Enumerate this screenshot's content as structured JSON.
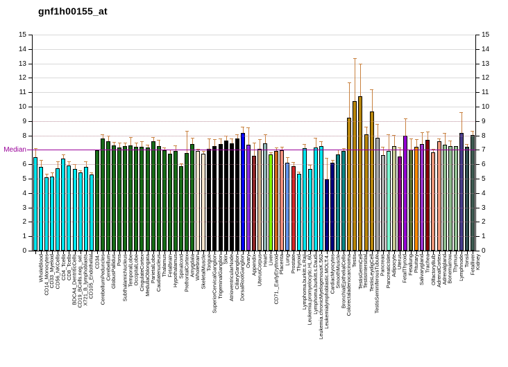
{
  "page_title": "gnf1h00155_at",
  "chart_data": {
    "type": "bar",
    "title": "gnf1h00155_at",
    "xlabel": "",
    "ylabel": "",
    "ylim": [
      0,
      15
    ],
    "y_ticks": [
      0,
      1,
      2,
      3,
      4,
      5,
      6,
      7,
      8,
      9,
      10,
      11,
      12,
      13,
      14,
      15
    ],
    "grid": true,
    "legend_position": "none",
    "median": {
      "label": "Median",
      "value": 7,
      "color": "#990099"
    },
    "error_bar_color": "#c8813f",
    "grid_color": "#d9d9d9",
    "axis_color": "#000000",
    "background_color": "#ffffff",
    "bars": [
      {
        "label": "WholeBlood",
        "value": 6.5,
        "err": 7.1,
        "color": "#00e6ee"
      },
      {
        "label": "CD14_Monocytes",
        "value": 5.8,
        "err": 6.3,
        "color": "#00e6ee"
      },
      {
        "label": "CD33_Myeloid",
        "value": 5.1,
        "err": 5.35,
        "color": "#00e6ee"
      },
      {
        "label": "CD56_NKCells",
        "value": 5.15,
        "err": 5.45,
        "color": "#00e6ee"
      },
      {
        "label": "CD4_Tcells",
        "value": 5.7,
        "err": 6.2,
        "color": "#00e6ee"
      },
      {
        "label": "CD8_Tcells",
        "value": 6.4,
        "err": 6.7,
        "color": "#00e6ee"
      },
      {
        "label": "BDCA4_DentriticCells",
        "value": 5.9,
        "err": 6.2,
        "color": "#00e6ee"
      },
      {
        "label": "CD19_BCells.neg._sel.",
        "value": 5.65,
        "err": 6.0,
        "color": "#00e6ee"
      },
      {
        "label": "X721_B_lymphoblasts",
        "value": 5.45,
        "err": 5.6,
        "color": "#00e6ee"
      },
      {
        "label": "CD105_Endothelial",
        "value": 5.8,
        "err": 6.2,
        "color": "#00e6ee"
      },
      {
        "label": "CD34.",
        "value": 5.3,
        "err": 5.45,
        "color": "#00e6ee"
      },
      {
        "label": "CerebellumPeduncles",
        "value": 6.95,
        "err": null,
        "color": "#176c17"
      },
      {
        "label": "Cerebellum",
        "value": 7.8,
        "err": 8.1,
        "color": "#176c17"
      },
      {
        "label": "GlobusPallidus",
        "value": 7.6,
        "err": 8.0,
        "color": "#176c17"
      },
      {
        "label": "Pons",
        "value": 7.3,
        "err": 7.55,
        "color": "#176c17"
      },
      {
        "label": "SubthalamicNucleus",
        "value": 7.15,
        "err": 7.5,
        "color": "#176c17"
      },
      {
        "label": "TemporalLobe",
        "value": 7.25,
        "err": 7.5,
        "color": "#176c17"
      },
      {
        "label": "OccipitalLobe",
        "value": 7.3,
        "err": 7.9,
        "color": "#176c17"
      },
      {
        "label": "CingulateCortex",
        "value": 7.2,
        "err": 7.5,
        "color": "#176c17"
      },
      {
        "label": "MedullaOblongata",
        "value": 7.2,
        "err": 7.6,
        "color": "#176c17"
      },
      {
        "label": "ParietalLobe",
        "value": 7.15,
        "err": 7.35,
        "color": "#176c17"
      },
      {
        "label": "Caudatenucleus",
        "value": 7.6,
        "err": 7.9,
        "color": "#176c17"
      },
      {
        "label": "Thalamus",
        "value": 7.25,
        "err": 7.7,
        "color": "#176c17"
      },
      {
        "label": "Fetalbrain",
        "value": 6.95,
        "err": 7.15,
        "color": "#176c17"
      },
      {
        "label": "Hypothalamus",
        "value": 6.75,
        "err": 7.0,
        "color": "#176c17"
      },
      {
        "label": "Spinalcord",
        "value": 6.9,
        "err": 7.3,
        "color": "#176c17"
      },
      {
        "label": "PrefrontalCortex",
        "value": 5.85,
        "err": 6.05,
        "color": "#176c17"
      },
      {
        "label": "Amygdala",
        "value": 6.8,
        "err": 8.3,
        "color": "#176c17"
      },
      {
        "label": "Wholebrain",
        "value": 7.4,
        "err": 7.85,
        "color": "#176c17"
      },
      {
        "label": "SkeletalMuscle",
        "value": 6.9,
        "err": 7.05,
        "color": "#fae8d0"
      },
      {
        "label": "Tongue",
        "value": 6.75,
        "err": 6.9,
        "color": "#fae8d0"
      },
      {
        "label": "SuperiorCervicalGanglion",
        "value": 7.05,
        "err": 7.8,
        "color": "#000000"
      },
      {
        "label": "TrigeminalGanglion",
        "value": 7.25,
        "err": 7.75,
        "color": "#000000"
      },
      {
        "label": "Skin",
        "value": 7.4,
        "err": 7.8,
        "color": "#000000"
      },
      {
        "label": "AtrioventricularNode",
        "value": 7.65,
        "err": 8.0,
        "color": "#000000"
      },
      {
        "label": "CiliaryGanglion",
        "value": 7.45,
        "err": 7.8,
        "color": "#000000"
      },
      {
        "label": "DorsalRootGanglion",
        "value": 7.8,
        "err": 8.1,
        "color": "#000000"
      },
      {
        "label": "Ovary",
        "value": 8.15,
        "err": 8.6,
        "color": "#0000ff"
      },
      {
        "label": "Appendix",
        "value": 7.35,
        "err": 8.55,
        "color": "#8a2be2"
      },
      {
        "label": "UterusCorpus",
        "value": 6.6,
        "err": 7.5,
        "color": "#8b2525"
      },
      {
        "label": "Heart",
        "value": 7.05,
        "err": 7.75,
        "color": "#d2b48c"
      },
      {
        "label": "Liver",
        "value": 7.45,
        "err": 8.1,
        "color": "#8fb1b1"
      },
      {
        "label": "CD71._EarlyErythroid",
        "value": 6.7,
        "err": 6.85,
        "color": "#7ef400"
      },
      {
        "label": "Placenta",
        "value": 6.9,
        "err": 7.15,
        "color": "#cd661d"
      },
      {
        "label": "Lung",
        "value": 6.95,
        "err": 7.2,
        "color": "#f2907e"
      },
      {
        "label": "Prostate",
        "value": 6.1,
        "err": 6.5,
        "color": "#6495ed"
      },
      {
        "label": "Thyroid",
        "value": 5.85,
        "err": 6.15,
        "color": "#d42a2a"
      },
      {
        "label": "Lymphoma.burkitt.s.Raji",
        "value": 5.35,
        "err": 5.5,
        "color": "#00e6ee"
      },
      {
        "label": "Leukemia.promyelocytic.HL.60",
        "value": 7.1,
        "err": 7.4,
        "color": "#00e6ee"
      },
      {
        "label": "Lymphoma.burkitt.s.Daudi",
        "value": 5.65,
        "err": 5.95,
        "color": "#00e6ee"
      },
      {
        "label": "Leukemia.chronicMyelogenousK.562",
        "value": 7.15,
        "err": 7.85,
        "color": "#00e6ee"
      },
      {
        "label": "Leukemialymphoblastic.MOLT.4.",
        "value": 7.25,
        "err": 7.6,
        "color": "#00e6ee"
      },
      {
        "label": "CardiacMyocytes",
        "value": 4.95,
        "err": 6.45,
        "color": "#000080"
      },
      {
        "label": "SmoothMuscle",
        "value": 6.1,
        "err": 6.3,
        "color": "#000080"
      },
      {
        "label": "BronchialEpithelialCells",
        "value": 6.7,
        "err": 7.0,
        "color": "#0d8686"
      },
      {
        "label": "Colorectaladenocarcinoma",
        "value": 6.9,
        "err": 7.1,
        "color": "#0d8686"
      },
      {
        "label": "Testis",
        "value": 9.25,
        "err": 11.7,
        "color": "#b8860b"
      },
      {
        "label": "TestisGermCell",
        "value": 10.4,
        "err": 13.35,
        "color": "#b8860b"
      },
      {
        "label": "TestisIntersitial",
        "value": 10.7,
        "err": 13.0,
        "color": "#b8860b"
      },
      {
        "label": "TestisLeydigCell",
        "value": 8.1,
        "err": 8.6,
        "color": "#b8860b"
      },
      {
        "label": "TestisSeminiferousTubule",
        "value": 9.65,
        "err": 11.2,
        "color": "#b8860b"
      },
      {
        "label": "Pancreas",
        "value": 7.85,
        "err": 8.8,
        "color": "#acacac"
      },
      {
        "label": "PancreaticIslet",
        "value": 6.65,
        "err": 7.2,
        "color": "#acacac"
      },
      {
        "label": "Adipocyte",
        "value": 6.9,
        "err": 8.1,
        "color": "#7fffd4"
      },
      {
        "label": "Uterus",
        "value": 7.25,
        "err": 8.05,
        "color": "#c9cb96"
      },
      {
        "label": "FetalThyroid",
        "value": 6.55,
        "err": 7.15,
        "color": "#8b008b"
      },
      {
        "label": "Fetallung",
        "value": 8.0,
        "err": 9.2,
        "color": "#9400d3"
      },
      {
        "label": "Pituitary",
        "value": 7.0,
        "err": 7.8,
        "color": "#556b2f"
      },
      {
        "label": "Salivarygland",
        "value": 7.2,
        "err": 7.75,
        "color": "#ff8c00"
      },
      {
        "label": "Trachea",
        "value": 7.4,
        "err": 8.2,
        "color": "#9932cc"
      },
      {
        "label": "OlfactoryBulb",
        "value": 7.7,
        "err": 8.25,
        "color": "#8b0000"
      },
      {
        "label": "AdrenalCortex",
        "value": 6.85,
        "err": 7.05,
        "color": "#e9967a"
      },
      {
        "label": "Adrenalgland",
        "value": 7.6,
        "err": 7.8,
        "color": "#e9967a"
      },
      {
        "label": "Bonemarrow",
        "value": 7.35,
        "err": 8.15,
        "color": "#8fbc8f"
      },
      {
        "label": "Thymus",
        "value": 7.25,
        "err": 7.65,
        "color": "#8fbc8f"
      },
      {
        "label": "Lymphnode",
        "value": 7.25,
        "err": null,
        "color": "#8fbc8f"
      },
      {
        "label": "Tonsil",
        "value": 8.15,
        "err": 9.6,
        "color": "#483d8b"
      },
      {
        "label": "Fetalliver",
        "value": 7.2,
        "err": 7.4,
        "color": "#2f4f4f"
      },
      {
        "label": "Kidney",
        "value": 8.05,
        "err": 8.3,
        "color": "#3e5c52"
      }
    ]
  }
}
